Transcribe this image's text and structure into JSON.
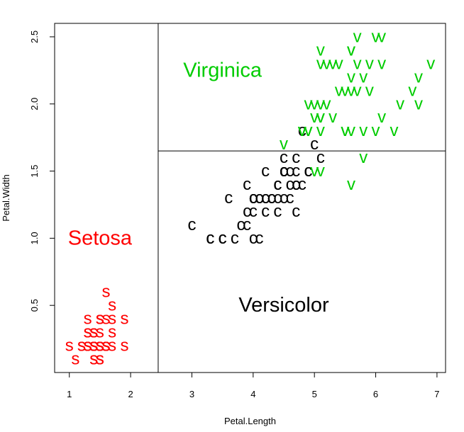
{
  "chart_data": {
    "type": "scatter",
    "title": "",
    "xlabel": "Petal.Length",
    "ylabel": "Petal.Width",
    "xlim": [
      0.76,
      7.14
    ],
    "ylim": [
      0.0,
      2.6
    ],
    "x_ticks": [
      "1",
      "2",
      "3",
      "4",
      "5",
      "6",
      "7"
    ],
    "y_ticks": [
      "0.5",
      "1.0",
      "1.5",
      "2.0",
      "2.5"
    ],
    "grid": false,
    "split_lines": {
      "vertical_x": 2.45,
      "horizontal_y": 1.65
    },
    "region_labels": [
      {
        "text": "Setosa",
        "x": 1.5,
        "y": 1.0,
        "color": "#ff0000"
      },
      {
        "text": "Virginica",
        "x": 3.5,
        "y": 2.25,
        "color": "#00cc00"
      },
      {
        "text": "Versicolor",
        "x": 4.5,
        "y": 0.5,
        "color": "#000000"
      }
    ],
    "series": [
      {
        "marker": "s",
        "color": "#ff0000",
        "points": [
          [
            1.4,
            0.2
          ],
          [
            1.4,
            0.2
          ],
          [
            1.3,
            0.2
          ],
          [
            1.5,
            0.2
          ],
          [
            1.4,
            0.2
          ],
          [
            1.7,
            0.4
          ],
          [
            1.4,
            0.3
          ],
          [
            1.5,
            0.2
          ],
          [
            1.4,
            0.2
          ],
          [
            1.5,
            0.1
          ],
          [
            1.5,
            0.2
          ],
          [
            1.6,
            0.2
          ],
          [
            1.4,
            0.1
          ],
          [
            1.1,
            0.1
          ],
          [
            1.2,
            0.2
          ],
          [
            1.5,
            0.4
          ],
          [
            1.3,
            0.4
          ],
          [
            1.4,
            0.3
          ],
          [
            1.7,
            0.3
          ],
          [
            1.5,
            0.3
          ],
          [
            1.7,
            0.2
          ],
          [
            1.5,
            0.4
          ],
          [
            1.0,
            0.2
          ],
          [
            1.7,
            0.5
          ],
          [
            1.9,
            0.2
          ],
          [
            1.6,
            0.2
          ],
          [
            1.6,
            0.4
          ],
          [
            1.5,
            0.2
          ],
          [
            1.4,
            0.2
          ],
          [
            1.6,
            0.2
          ],
          [
            1.6,
            0.2
          ],
          [
            1.5,
            0.4
          ],
          [
            1.5,
            0.1
          ],
          [
            1.4,
            0.2
          ],
          [
            1.5,
            0.2
          ],
          [
            1.2,
            0.2
          ],
          [
            1.3,
            0.2
          ],
          [
            1.4,
            0.1
          ],
          [
            1.3,
            0.2
          ],
          [
            1.5,
            0.2
          ],
          [
            1.3,
            0.3
          ],
          [
            1.3,
            0.3
          ],
          [
            1.3,
            0.2
          ],
          [
            1.6,
            0.6
          ],
          [
            1.9,
            0.4
          ],
          [
            1.4,
            0.3
          ],
          [
            1.6,
            0.2
          ],
          [
            1.4,
            0.2
          ],
          [
            1.5,
            0.2
          ],
          [
            1.4,
            0.2
          ]
        ]
      },
      {
        "marker": "c",
        "color": "#000000",
        "points": [
          [
            4.7,
            1.4
          ],
          [
            4.5,
            1.5
          ],
          [
            4.9,
            1.5
          ],
          [
            4.0,
            1.3
          ],
          [
            4.6,
            1.5
          ],
          [
            4.5,
            1.3
          ],
          [
            4.7,
            1.6
          ],
          [
            3.3,
            1.0
          ],
          [
            4.6,
            1.3
          ],
          [
            3.9,
            1.4
          ],
          [
            3.5,
            1.0
          ],
          [
            4.2,
            1.5
          ],
          [
            4.0,
            1.0
          ],
          [
            4.7,
            1.4
          ],
          [
            3.6,
            1.3
          ],
          [
            4.4,
            1.4
          ],
          [
            4.5,
            1.5
          ],
          [
            4.1,
            1.0
          ],
          [
            4.5,
            1.5
          ],
          [
            3.9,
            1.1
          ],
          [
            4.8,
            1.8
          ],
          [
            4.0,
            1.3
          ],
          [
            4.9,
            1.5
          ],
          [
            4.7,
            1.2
          ],
          [
            4.3,
            1.3
          ],
          [
            4.4,
            1.4
          ],
          [
            4.8,
            1.4
          ],
          [
            5.0,
            1.7
          ],
          [
            4.5,
            1.5
          ],
          [
            3.5,
            1.0
          ],
          [
            3.8,
            1.1
          ],
          [
            3.7,
            1.0
          ],
          [
            3.9,
            1.2
          ],
          [
            5.1,
            1.6
          ],
          [
            4.5,
            1.5
          ],
          [
            4.5,
            1.6
          ],
          [
            4.7,
            1.5
          ],
          [
            4.4,
            1.3
          ],
          [
            4.1,
            1.3
          ],
          [
            4.0,
            1.3
          ],
          [
            4.4,
            1.2
          ],
          [
            4.6,
            1.4
          ],
          [
            4.0,
            1.2
          ],
          [
            3.3,
            1.0
          ],
          [
            4.2,
            1.3
          ],
          [
            4.2,
            1.2
          ],
          [
            4.2,
            1.3
          ],
          [
            4.3,
            1.3
          ],
          [
            3.0,
            1.1
          ],
          [
            4.1,
            1.3
          ]
        ]
      },
      {
        "marker": "v",
        "color": "#00cc00",
        "points": [
          [
            6.0,
            2.5
          ],
          [
            5.1,
            1.9
          ],
          [
            5.9,
            2.1
          ],
          [
            5.6,
            1.8
          ],
          [
            5.8,
            2.2
          ],
          [
            6.6,
            2.1
          ],
          [
            4.5,
            1.7
          ],
          [
            6.3,
            1.8
          ],
          [
            5.8,
            1.8
          ],
          [
            6.1,
            2.5
          ],
          [
            5.1,
            2.0
          ],
          [
            5.3,
            1.9
          ],
          [
            5.5,
            2.1
          ],
          [
            5.0,
            2.0
          ],
          [
            5.1,
            2.4
          ],
          [
            5.3,
            2.3
          ],
          [
            5.5,
            1.8
          ],
          [
            6.7,
            2.2
          ],
          [
            6.9,
            2.3
          ],
          [
            5.0,
            1.5
          ],
          [
            5.7,
            2.3
          ],
          [
            4.9,
            2.0
          ],
          [
            6.7,
            2.0
          ],
          [
            4.9,
            1.8
          ],
          [
            5.7,
            2.1
          ],
          [
            6.0,
            1.8
          ],
          [
            4.8,
            1.8
          ],
          [
            4.9,
            1.8
          ],
          [
            5.6,
            2.1
          ],
          [
            5.8,
            1.6
          ],
          [
            6.1,
            1.9
          ],
          [
            6.4,
            2.0
          ],
          [
            5.6,
            2.2
          ],
          [
            5.1,
            1.5
          ],
          [
            5.6,
            1.4
          ],
          [
            6.1,
            2.3
          ],
          [
            5.6,
            2.4
          ],
          [
            5.5,
            1.8
          ],
          [
            4.8,
            1.8
          ],
          [
            5.4,
            2.1
          ],
          [
            5.6,
            2.4
          ],
          [
            5.1,
            2.3
          ],
          [
            5.1,
            1.9
          ],
          [
            5.9,
            2.3
          ],
          [
            5.7,
            2.5
          ],
          [
            5.2,
            2.3
          ],
          [
            5.0,
            1.9
          ],
          [
            5.2,
            2.0
          ],
          [
            5.4,
            2.3
          ],
          [
            5.1,
            1.8
          ]
        ]
      }
    ]
  }
}
